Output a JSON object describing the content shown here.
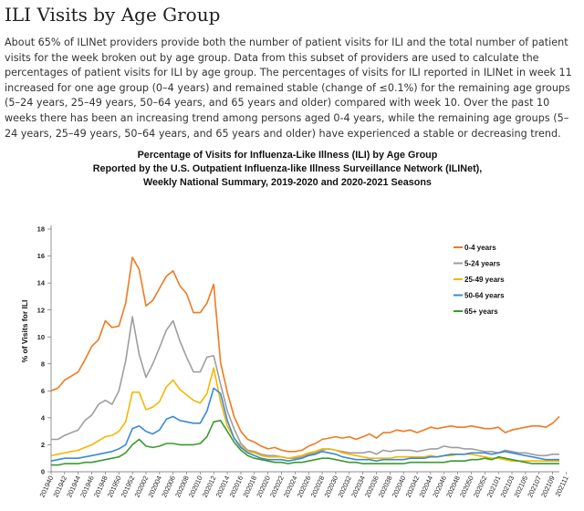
{
  "page": {
    "title": "ILI Visits by Age Group",
    "summary": "About 65% of ILINet providers provide both the number of patient visits for ILI and the total number of patient visits for the week broken out by age group. Data from this subset of providers are used to calculate the percentages of patient visits for ILI by age group. The percentages of visits for ILI reported in ILINet in week 11 increased for one age group (0–4 years) and remained stable (change of ≤0.1%) for the remaining age groups (5–24 years, 25–49 years, 50–64 years, and 65 years and older) compared with week 10. Over the past 10 weeks there has been an increasing trend among persons aged 0-4 years, while the remaining age groups (5–24 years, 25–49 years, 50–64 years, and 65 years and older) have experienced a stable or decreasing trend."
  },
  "chart_data": {
    "type": "line",
    "title": [
      "Percentage of Visits for Influenza-Like Illness (ILI) by Age Group",
      "Reported by the U.S. Outpatient Influenza-like Illness Surveillance Network (ILINet),",
      "Weekly National Summary, 2019-2020 and 2020-2021 Seasons"
    ],
    "xlabel": "",
    "ylabel": "% of Visits for ILI",
    "ylim": [
      0,
      18
    ],
    "yticks": [
      0,
      2,
      4,
      6,
      8,
      10,
      12,
      14,
      16,
      18
    ],
    "xtick_labels": [
      "201940",
      "201942",
      "201944",
      "201946",
      "201948",
      "201950",
      "201952",
      "202002",
      "202004",
      "202006",
      "202008",
      "202010",
      "202012",
      "202014",
      "202016",
      "202018",
      "202020",
      "202022",
      "202024",
      "202026",
      "202028",
      "202030",
      "202032",
      "202034",
      "202036",
      "202038",
      "202040",
      "202042",
      "202044",
      "202046",
      "202048",
      "202050",
      "202052",
      "202101",
      "202103",
      "202105",
      "202107",
      "202109",
      "202111"
    ],
    "n_points": 76,
    "legend_position": "right",
    "series": [
      {
        "name": "0-4 years",
        "color": "#f07a20",
        "values": [
          6.0,
          6.2,
          6.8,
          7.1,
          7.4,
          8.3,
          9.3,
          9.8,
          11.2,
          10.7,
          10.8,
          12.5,
          15.9,
          15.0,
          12.3,
          12.7,
          13.6,
          14.5,
          14.9,
          13.8,
          13.2,
          11.8,
          11.8,
          12.5,
          13.9,
          8.1,
          5.9,
          4.1,
          3.0,
          2.4,
          2.2,
          1.9,
          1.7,
          1.8,
          1.6,
          1.5,
          1.5,
          1.6,
          1.9,
          2.1,
          2.4,
          2.5,
          2.6,
          2.5,
          2.6,
          2.4,
          2.6,
          2.8,
          2.5,
          2.9,
          2.9,
          3.1,
          3.0,
          3.1,
          2.9,
          3.1,
          3.3,
          3.2,
          3.3,
          3.4,
          3.3,
          3.3,
          3.4,
          3.3,
          3.2,
          3.2,
          3.3,
          2.9,
          3.1,
          3.2,
          3.3,
          3.4,
          3.4,
          3.3,
          3.6,
          4.1
        ]
      },
      {
        "name": "5-24 years",
        "color": "#9e9e9e",
        "values": [
          2.4,
          2.4,
          2.7,
          2.9,
          3.1,
          3.8,
          4.2,
          5.0,
          5.3,
          5.0,
          6.0,
          8.2,
          11.5,
          8.7,
          7.0,
          8.0,
          9.2,
          10.5,
          11.2,
          9.7,
          8.5,
          7.4,
          7.4,
          8.5,
          8.6,
          6.5,
          4.5,
          3.2,
          2.1,
          1.6,
          1.5,
          1.3,
          1.2,
          1.2,
          1.1,
          1.0,
          1.0,
          1.1,
          1.3,
          1.4,
          1.6,
          1.7,
          1.6,
          1.5,
          1.4,
          1.4,
          1.4,
          1.5,
          1.3,
          1.6,
          1.5,
          1.6,
          1.6,
          1.6,
          1.5,
          1.6,
          1.7,
          1.7,
          1.9,
          1.8,
          1.8,
          1.7,
          1.7,
          1.6,
          1.5,
          1.5,
          1.4,
          1.6,
          1.5,
          1.4,
          1.4,
          1.3,
          1.2,
          1.2,
          1.3,
          1.3
        ]
      },
      {
        "name": "25-49 years",
        "color": "#f5b800",
        "values": [
          1.2,
          1.3,
          1.4,
          1.5,
          1.6,
          1.8,
          2.0,
          2.3,
          2.6,
          2.7,
          3.0,
          3.7,
          5.9,
          5.9,
          4.6,
          4.8,
          5.2,
          6.3,
          6.8,
          6.1,
          5.7,
          5.3,
          5.1,
          5.8,
          7.7,
          5.2,
          3.4,
          2.5,
          1.9,
          1.5,
          1.4,
          1.2,
          1.1,
          1.1,
          1.1,
          1.0,
          1.1,
          1.2,
          1.4,
          1.5,
          1.7,
          1.7,
          1.6,
          1.4,
          1.3,
          1.2,
          1.1,
          1.0,
          1.0,
          1.0,
          1.0,
          1.1,
          1.1,
          1.1,
          1.1,
          1.1,
          1.2,
          1.1,
          1.2,
          1.2,
          1.3,
          1.3,
          1.3,
          1.2,
          1.1,
          1.0,
          1.0,
          0.9,
          0.8,
          0.8,
          0.8,
          0.8,
          0.8,
          0.8,
          0.8,
          0.8
        ]
      },
      {
        "name": "50-64 years",
        "color": "#3a8ad6",
        "values": [
          0.8,
          0.9,
          1.0,
          1.0,
          1.0,
          1.1,
          1.2,
          1.3,
          1.4,
          1.5,
          1.7,
          2.0,
          3.2,
          3.4,
          3.0,
          2.8,
          3.1,
          3.9,
          4.1,
          3.8,
          3.7,
          3.6,
          3.6,
          4.5,
          6.2,
          5.8,
          3.8,
          2.5,
          1.8,
          1.4,
          1.2,
          1.0,
          0.9,
          0.9,
          0.9,
          0.8,
          0.9,
          1.0,
          1.2,
          1.3,
          1.5,
          1.4,
          1.3,
          1.1,
          1.0,
          0.9,
          0.9,
          0.9,
          0.8,
          0.9,
          0.9,
          0.9,
          0.9,
          1.0,
          1.0,
          1.0,
          1.1,
          1.1,
          1.2,
          1.3,
          1.3,
          1.3,
          1.4,
          1.4,
          1.4,
          1.3,
          1.4,
          1.5,
          1.4,
          1.3,
          1.2,
          1.1,
          1.0,
          0.9,
          0.9,
          0.9
        ]
      },
      {
        "name": "65+ years",
        "color": "#3a9a2e",
        "values": [
          0.5,
          0.5,
          0.6,
          0.6,
          0.6,
          0.7,
          0.7,
          0.8,
          0.9,
          1.0,
          1.1,
          1.4,
          2.0,
          2.4,
          1.9,
          1.8,
          1.9,
          2.1,
          2.1,
          2.0,
          2.0,
          2.0,
          2.1,
          2.6,
          3.7,
          3.8,
          3.0,
          2.2,
          1.6,
          1.2,
          1.0,
          0.9,
          0.8,
          0.7,
          0.7,
          0.6,
          0.7,
          0.7,
          0.8,
          0.9,
          1.0,
          1.0,
          0.9,
          0.8,
          0.7,
          0.7,
          0.6,
          0.6,
          0.6,
          0.6,
          0.6,
          0.6,
          0.6,
          0.7,
          0.7,
          0.7,
          0.7,
          0.7,
          0.7,
          0.8,
          0.8,
          0.8,
          0.9,
          0.9,
          1.0,
          0.9,
          1.1,
          1.0,
          0.9,
          0.8,
          0.7,
          0.6,
          0.6,
          0.6,
          0.6,
          0.6
        ]
      }
    ]
  }
}
